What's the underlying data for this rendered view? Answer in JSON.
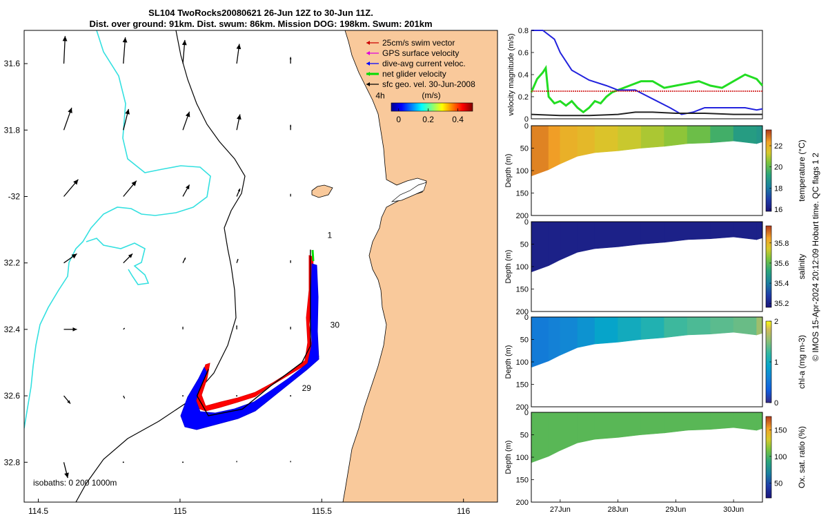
{
  "header": {
    "title_line1": "SL104 TwoRocks20080621 26-Jun 12Z to 30-Jun 11Z.",
    "title_line2": "Dist. over ground: 91km. Dist. swum: 86km. Mission DOG: 198km. Swum: 201km"
  },
  "credit": "© IMOS 15-Apr-2024 20:12:09 Hobart time. QC flags 1  2",
  "colors": {
    "land": "#f9c99b",
    "ocean": "#ffffff",
    "track_red": "#ff0000",
    "track_blue": "#0000ff",
    "track_green": "#00dd00",
    "isobath_200": "#000000",
    "isobath_1000": "#33e0e0",
    "net_line": "#22dd22",
    "dive_line": "#2222dd",
    "swim_line": "#cc0000",
    "sfc_line": "#222222"
  },
  "chart_data": [
    {
      "type": "map",
      "x_ticks": [
        114.5,
        115,
        115.5,
        116
      ],
      "x_tick_labels": [
        "114.5",
        "115",
        "115.5",
        "116"
      ],
      "y_ticks": [
        31.6,
        31.8,
        32,
        32.2,
        32.4,
        32.6,
        32.8
      ],
      "y_tick_labels": [
        "31.6",
        "31.8",
        "-32",
        "32.2",
        "32.4",
        "32.6",
        "32.8"
      ],
      "xlim": [
        114.45,
        116.12
      ],
      "ylim_south": [
        31.5,
        32.92
      ],
      "legend": {
        "placement": "top-right",
        "entries": [
          {
            "label": "25cm/s swim vector",
            "color": "#cc0000"
          },
          {
            "label": "GPS surface velocity",
            "color": "#dd00dd"
          },
          {
            "label": "dive-avg current veloc.",
            "color": "#0000ff"
          },
          {
            "label": "net glider velocity",
            "color": "#00dd00"
          },
          {
            "label": "sfc geo. vel. 30-Jun-2008",
            "color": "#000000"
          }
        ]
      },
      "colorbar": {
        "title": "(m/s)",
        "ticks": [
          0,
          0.2,
          0.4
        ],
        "tick_labels": [
          "0",
          "0.2",
          "0.4"
        ],
        "range": [
          -0.05,
          0.5
        ]
      },
      "annotations": [
        {
          "text": "4h",
          "lon": 115.69,
          "lat": 31.705
        },
        {
          "text": "1",
          "lon": 115.52,
          "lat": 32.125
        },
        {
          "text": "30",
          "lon": 115.53,
          "lat": 32.395
        },
        {
          "text": "29",
          "lon": 115.43,
          "lat": 32.585
        }
      ],
      "isobath_note": "isobaths: 0   200  1000m",
      "track": [
        [
          115.46,
          32.16
        ],
        [
          115.46,
          32.28
        ],
        [
          115.46,
          32.45
        ],
        [
          115.43,
          32.5
        ],
        [
          115.32,
          32.57
        ],
        [
          115.22,
          32.64
        ],
        [
          115.1,
          32.66
        ],
        [
          115.06,
          32.6
        ],
        [
          115.1,
          32.52
        ]
      ],
      "current_vectors": [
        {
          "lon": 114.59,
          "lat": 31.6,
          "u": 0.02,
          "v": 0.42
        },
        {
          "lon": 114.8,
          "lat": 31.6,
          "u": 0.03,
          "v": 0.4
        },
        {
          "lon": 115.01,
          "lat": 31.6,
          "u": 0.03,
          "v": 0.36
        },
        {
          "lon": 115.2,
          "lat": 31.6,
          "u": 0.04,
          "v": 0.3
        },
        {
          "lon": 115.39,
          "lat": 31.6,
          "u": 0.0,
          "v": 0.1
        },
        {
          "lon": 114.59,
          "lat": 31.8,
          "u": 0.12,
          "v": 0.34
        },
        {
          "lon": 114.8,
          "lat": 31.8,
          "u": 0.08,
          "v": 0.32
        },
        {
          "lon": 115.01,
          "lat": 31.8,
          "u": 0.1,
          "v": 0.28
        },
        {
          "lon": 115.2,
          "lat": 31.8,
          "u": 0.05,
          "v": 0.24
        },
        {
          "lon": 115.39,
          "lat": 31.8,
          "u": 0.0,
          "v": 0.08
        },
        {
          "lon": 114.59,
          "lat": 32.0,
          "u": 0.22,
          "v": 0.26
        },
        {
          "lon": 114.8,
          "lat": 32.0,
          "u": 0.2,
          "v": 0.24
        },
        {
          "lon": 115.01,
          "lat": 32.0,
          "u": 0.1,
          "v": 0.18
        },
        {
          "lon": 115.2,
          "lat": 32.0,
          "u": 0.05,
          "v": 0.12
        },
        {
          "lon": 115.39,
          "lat": 32.0,
          "u": 0.0,
          "v": 0.04
        },
        {
          "lon": 114.59,
          "lat": 32.2,
          "u": 0.2,
          "v": 0.14
        },
        {
          "lon": 114.8,
          "lat": 32.2,
          "u": 0.14,
          "v": 0.14
        },
        {
          "lon": 115.01,
          "lat": 32.2,
          "u": 0.04,
          "v": 0.08
        },
        {
          "lon": 115.2,
          "lat": 32.2,
          "u": 0.02,
          "v": 0.06
        },
        {
          "lon": 115.39,
          "lat": 32.2,
          "u": 0.0,
          "v": 0.04
        },
        {
          "lon": 114.59,
          "lat": 32.4,
          "u": 0.2,
          "v": 0.0
        },
        {
          "lon": 114.8,
          "lat": 32.4,
          "u": 0.02,
          "v": 0.02
        },
        {
          "lon": 115.01,
          "lat": 32.4,
          "u": 0.0,
          "v": 0.04
        },
        {
          "lon": 115.2,
          "lat": 32.4,
          "u": 0.0,
          "v": 0.06
        },
        {
          "lon": 115.39,
          "lat": 32.4,
          "u": 0.0,
          "v": 0.04
        },
        {
          "lon": 114.59,
          "lat": 32.6,
          "u": 0.1,
          "v": -0.12
        },
        {
          "lon": 114.8,
          "lat": 32.6,
          "u": 0.02,
          "v": -0.04
        },
        {
          "lon": 115.01,
          "lat": 32.6,
          "u": 0.0,
          "v": 0.0
        },
        {
          "lon": 115.2,
          "lat": 32.6,
          "u": 0.0,
          "v": 0.0
        },
        {
          "lon": 115.39,
          "lat": 32.6,
          "u": 0.0,
          "v": 0.0
        },
        {
          "lon": 114.59,
          "lat": 32.8,
          "u": 0.06,
          "v": -0.24
        },
        {
          "lon": 114.8,
          "lat": 32.8,
          "u": 0.0,
          "v": 0.0
        },
        {
          "lon": 115.01,
          "lat": 32.8,
          "u": 0.0,
          "v": 0.0
        },
        {
          "lon": 115.2,
          "lat": 32.8,
          "u": 0.0,
          "v": 0.02
        },
        {
          "lon": 115.39,
          "lat": 32.8,
          "u": 0.0,
          "v": 0.02
        }
      ]
    },
    {
      "type": "line",
      "ylabel": "velocity magnitude (m/s)",
      "ylim": [
        0,
        0.8
      ],
      "y_ticks": [
        0,
        0.2,
        0.4,
        0.6,
        0.8
      ],
      "y_tick_labels": [
        "0",
        "0.2",
        "0.4",
        "0.6",
        "0.8"
      ],
      "xlim": [
        26.5,
        30.5
      ],
      "series": [
        {
          "color": "#22dd22",
          "x": [
            26.5,
            26.6,
            26.7,
            26.75,
            26.8,
            26.9,
            27.0,
            27.1,
            27.2,
            27.3,
            27.4,
            27.5,
            27.6,
            27.7,
            27.8,
            27.9,
            28.0,
            28.2,
            28.4,
            28.6,
            28.8,
            29.0,
            29.2,
            29.4,
            29.6,
            29.8,
            30.0,
            30.2,
            30.4,
            30.5
          ],
          "y": [
            0.24,
            0.36,
            0.42,
            0.46,
            0.2,
            0.14,
            0.16,
            0.12,
            0.16,
            0.1,
            0.06,
            0.1,
            0.16,
            0.14,
            0.2,
            0.24,
            0.26,
            0.3,
            0.34,
            0.34,
            0.28,
            0.3,
            0.32,
            0.34,
            0.3,
            0.28,
            0.34,
            0.4,
            0.36,
            0.3
          ]
        },
        {
          "color": "#2222dd",
          "x": [
            26.5,
            26.7,
            26.9,
            27.0,
            27.2,
            27.5,
            27.8,
            28.0,
            28.3,
            28.6,
            28.9,
            29.1,
            29.3,
            29.5,
            29.8,
            30.0,
            30.2,
            30.4,
            30.5
          ],
          "y": [
            0.8,
            0.8,
            0.72,
            0.6,
            0.44,
            0.35,
            0.3,
            0.26,
            0.26,
            0.18,
            0.1,
            0.04,
            0.06,
            0.1,
            0.1,
            0.1,
            0.1,
            0.08,
            0.09
          ]
        },
        {
          "color": "#cc0000",
          "x": [
            26.5,
            30.5
          ],
          "y": [
            0.25,
            0.25
          ]
        },
        {
          "color": "#222222",
          "x": [
            26.5,
            27.0,
            27.5,
            28.0,
            28.3,
            28.6,
            29.0,
            29.5,
            30.0,
            30.5
          ],
          "y": [
            0.04,
            0.03,
            0.03,
            0.04,
            0.06,
            0.06,
            0.05,
            0.05,
            0.04,
            0.04
          ]
        }
      ]
    },
    {
      "type": "heatmap",
      "ylabel": "Depth (m)",
      "colorbar_label": "temperature (°C)",
      "cbar_range": [
        15.8,
        23.5
      ],
      "cbar_ticks": [
        16,
        18,
        20,
        22
      ],
      "cbar_tick_labels": [
        "16",
        "18",
        "20",
        "22"
      ],
      "y_ticks": [
        0,
        50,
        100,
        150,
        200
      ],
      "y_tick_labels": [
        "0",
        "50",
        "100",
        "150",
        "200"
      ],
      "ylim": [
        0,
        200
      ],
      "xlim": [
        26.5,
        30.5
      ],
      "time": [
        26.5,
        26.8,
        27.0,
        27.3,
        27.6,
        28.0,
        28.4,
        28.8,
        29.2,
        29.6,
        30.0,
        30.4,
        30.5
      ],
      "bottom_depth": [
        112,
        98,
        85,
        68,
        60,
        56,
        50,
        46,
        40,
        38,
        34,
        40,
        36
      ],
      "surface_value": [
        22.7,
        22.4,
        22.0,
        21.8,
        21.5,
        21.2,
        20.9,
        20.6,
        20.2,
        19.6,
        19.0,
        18.8,
        19.0
      ]
    },
    {
      "type": "heatmap",
      "ylabel": "Depth (m)",
      "colorbar_label": "salinity",
      "cbar_range": [
        35.16,
        35.97
      ],
      "cbar_ticks": [
        35.2,
        35.4,
        35.6,
        35.8
      ],
      "cbar_tick_labels": [
        "35.2",
        "35.4",
        "35.6",
        "35.8"
      ],
      "y_ticks": [
        0,
        50,
        100,
        150,
        200
      ],
      "y_tick_labels": [
        "0",
        "50",
        "100",
        "150",
        "200"
      ],
      "ylim": [
        0,
        200
      ],
      "xlim": [
        26.5,
        30.5
      ],
      "time": [
        26.5,
        26.8,
        27.0,
        27.3,
        27.6,
        28.0,
        28.4,
        28.8,
        29.2,
        29.6,
        30.0,
        30.4,
        30.5
      ],
      "bottom_depth": [
        112,
        98,
        85,
        68,
        60,
        56,
        50,
        46,
        40,
        38,
        34,
        40,
        36
      ],
      "surface_value": [
        35.2,
        35.2,
        35.2,
        35.2,
        35.2,
        35.2,
        35.2,
        35.2,
        35.2,
        35.2,
        35.2,
        35.2,
        35.2
      ]
    },
    {
      "type": "heatmap",
      "ylabel": "Depth (m)",
      "colorbar_label": "chl-a (mg m-3)",
      "cbar_range": [
        0,
        2
      ],
      "cbar_ticks": [
        0,
        1,
        2
      ],
      "cbar_tick_labels": [
        "0",
        "1",
        "2"
      ],
      "y_ticks": [
        0,
        50,
        100,
        150,
        200
      ],
      "y_tick_labels": [
        "0",
        "50",
        "100",
        "150",
        "200"
      ],
      "ylim": [
        0,
        200
      ],
      "xlim": [
        26.5,
        30.5
      ],
      "time": [
        26.5,
        26.8,
        27.0,
        27.3,
        27.6,
        28.0,
        28.4,
        28.8,
        29.2,
        29.6,
        30.0,
        30.4,
        30.5
      ],
      "bottom_depth": [
        112,
        98,
        85,
        68,
        60,
        56,
        50,
        46,
        40,
        38,
        34,
        40,
        36
      ],
      "surface_value": [
        0.55,
        0.6,
        0.65,
        0.75,
        0.9,
        1.0,
        1.1,
        1.25,
        1.3,
        1.35,
        1.4,
        1.6,
        1.7
      ]
    },
    {
      "type": "heatmap",
      "ylabel": "Depth (m)",
      "colorbar_label": "Ox. sat. ratio (%)",
      "cbar_range": [
        22,
        175
      ],
      "cbar_ticks": [
        50,
        100,
        150
      ],
      "cbar_tick_labels": [
        "50",
        "100",
        "150"
      ],
      "y_ticks": [
        0,
        50,
        100,
        150,
        200
      ],
      "y_tick_labels": [
        "0",
        "50",
        "100",
        "150",
        "200"
      ],
      "ylim": [
        0,
        200
      ],
      "xlim": [
        26.5,
        30.5
      ],
      "x_ticks": [
        27,
        28,
        29,
        30
      ],
      "x_tick_labels": [
        "27Jun",
        "28Jun",
        "29Jun",
        "30Jun"
      ],
      "time": [
        26.5,
        26.8,
        27.0,
        27.3,
        27.6,
        28.0,
        28.4,
        28.8,
        29.2,
        29.6,
        30.0,
        30.4,
        30.5
      ],
      "bottom_depth": [
        112,
        98,
        85,
        68,
        60,
        56,
        50,
        46,
        40,
        38,
        34,
        40,
        36
      ],
      "surface_value": [
        104,
        104,
        104,
        104,
        104,
        104,
        104,
        104,
        104,
        104,
        104,
        104,
        104
      ]
    }
  ]
}
